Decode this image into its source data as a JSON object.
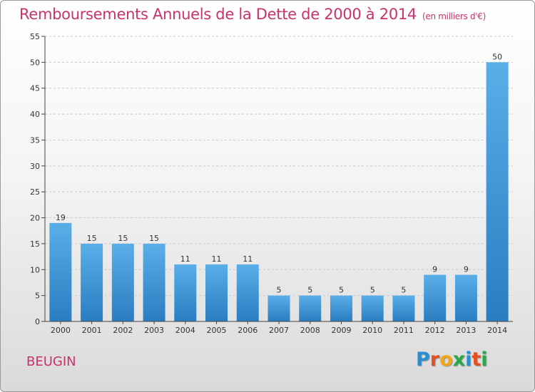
{
  "title": "Remboursements Annuels de la Dette de 2000 à 2014",
  "subtitle": "(en milliers d'€)",
  "commune": "BEUGIN",
  "logo": {
    "text": "Proxiti",
    "letter_colors": [
      "#2a8fd0",
      "#e6501e",
      "#f0a81a",
      "#2aa84a",
      "#2a8fd0",
      "#e6501e",
      "#2aa84a"
    ]
  },
  "colors": {
    "bar_light": "#5aaee8",
    "bar_dark": "#2a7dc0",
    "title": "#c8336e",
    "grid": "#c8c8c8",
    "axis": "#444444"
  },
  "chart_data": {
    "type": "bar",
    "categories": [
      "2000",
      "2001",
      "2002",
      "2003",
      "2004",
      "2005",
      "2006",
      "2007",
      "2008",
      "2009",
      "2010",
      "2011",
      "2012",
      "2013",
      "2014"
    ],
    "values": [
      19,
      15,
      15,
      15,
      11,
      11,
      11,
      5,
      5,
      5,
      5,
      5,
      9,
      9,
      50
    ],
    "data_labels": [
      "19",
      "15",
      "15",
      "15",
      "11",
      "11",
      "11",
      "5",
      "5",
      "5",
      "5",
      "5",
      "9",
      "9",
      "50"
    ],
    "title": "Remboursements Annuels de la Dette de 2000 à 2014",
    "subtitle": "(en milliers d'€)",
    "xlabel": "",
    "ylabel": "",
    "ylim": [
      0,
      55
    ],
    "yticks": [
      0,
      5,
      10,
      15,
      20,
      25,
      30,
      35,
      40,
      45,
      50,
      55
    ],
    "ytick_labels": [
      "0",
      "5",
      "10",
      "15",
      "20",
      "25",
      "30",
      "35",
      "40",
      "45",
      "50",
      "55"
    ],
    "grid": true,
    "legend": "none"
  }
}
